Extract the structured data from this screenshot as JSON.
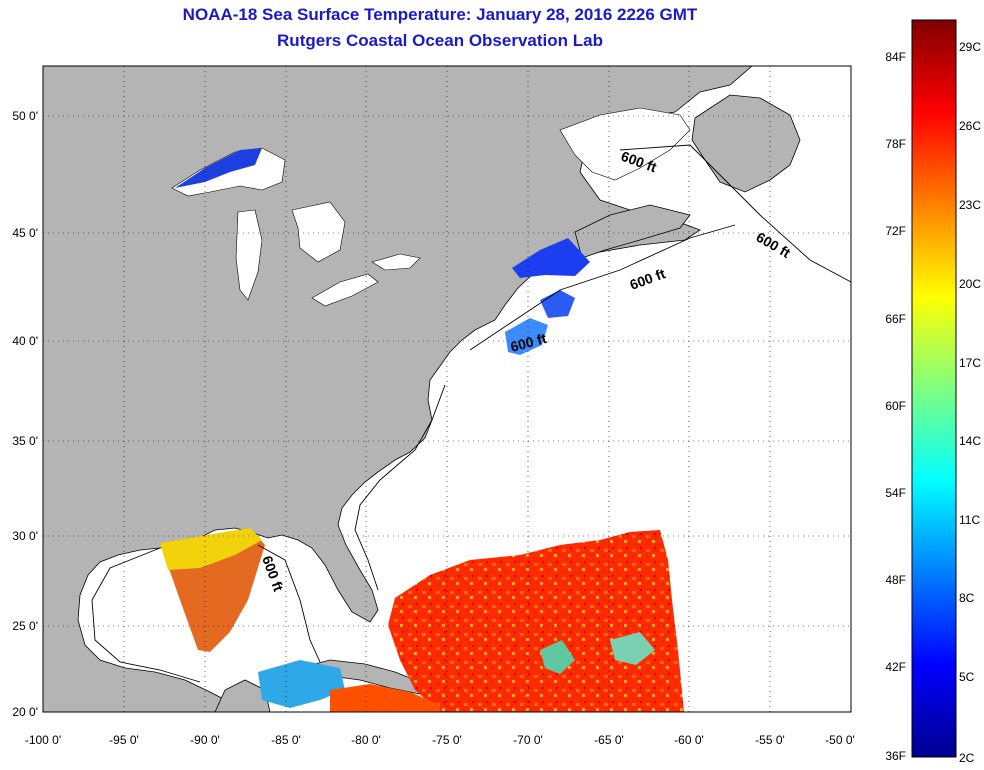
{
  "header": {
    "title": "NOAA-18 Sea Surface Temperature:  January 28, 2016 2226 GMT",
    "subtitle": "Rutgers Coastal Ocean Observation Lab"
  },
  "map": {
    "lon_ticks": [
      "-100 0'",
      "-95 0'",
      "-90 0'",
      "-85 0'",
      "-80 0'",
      "-75 0'",
      "-70 0'",
      "-65 0'",
      "-60 0'",
      "-55 0'",
      "-50 0'"
    ],
    "lat_ticks": [
      "50 0'",
      "45 0'",
      "40 0'",
      "35 0'",
      "30 0'",
      "25 0'",
      "20 0'"
    ],
    "lon_range": [
      -100,
      -50
    ],
    "lat_range": [
      20,
      52.5
    ],
    "contour_labels": [
      "600 ft",
      "600 ft",
      "600 ft",
      "600 ft",
      "600 ft"
    ],
    "land_color": "#b4b4b4",
    "water_color": "#ffffff"
  },
  "colorbar": {
    "fahrenheit_labels": [
      "84F",
      "78F",
      "72F",
      "66F",
      "60F",
      "54F",
      "48F",
      "42F",
      "36F"
    ],
    "celsius_labels": [
      "29C",
      "26C",
      "23C",
      "20C",
      "17C",
      "14C",
      "11C",
      "8C",
      "5C",
      "2C"
    ],
    "range_c": [
      2,
      30
    ],
    "colormap": [
      "#00008f",
      "#0000ff",
      "#00ffff",
      "#ffff00",
      "#ff0000",
      "#800000"
    ]
  }
}
